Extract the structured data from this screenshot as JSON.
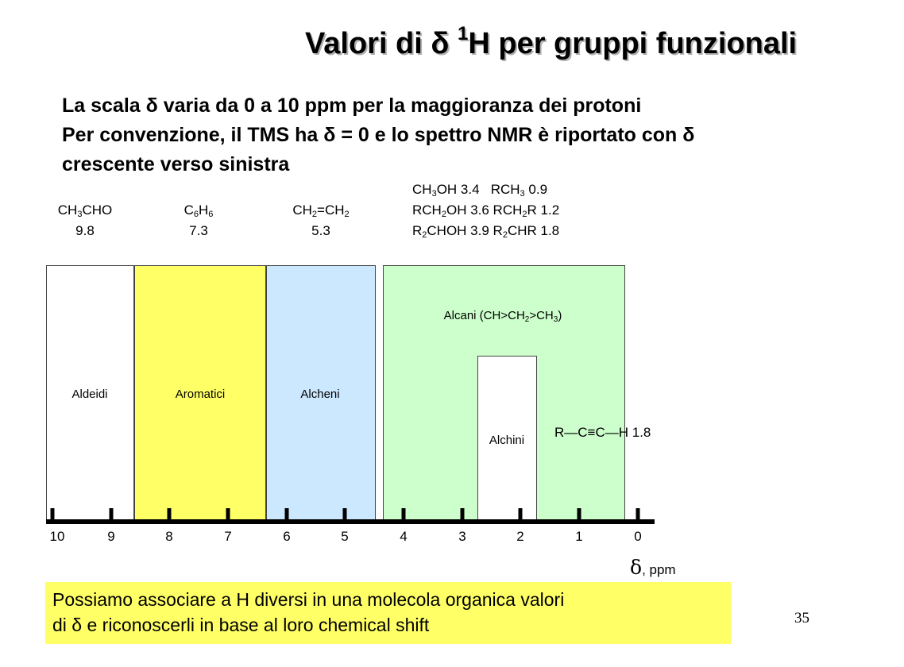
{
  "title": {
    "text": "Valori di δ",
    "sup": "1",
    "rest": "H per gruppi funzionali"
  },
  "intro_lines": [
    "La scala δ varia da 0 a 10 ppm per la maggioranza dei protoni",
    "Per convenzione, il TMS ha δ = 0 e lo spettro NMR è riportato con δ",
    "crescente verso sinistra"
  ],
  "examples": {
    "aldehyde": {
      "formula": [
        "CH",
        "3",
        "CHO"
      ],
      "value": "9.8"
    },
    "aromatic": {
      "formula": [
        "C",
        "6",
        "H",
        "6"
      ],
      "value": "7.3"
    },
    "alkene": {
      "formula": [
        "CH",
        "2",
        "=CH",
        "2"
      ],
      "value": "5.3"
    },
    "alkane_lines": [
      [
        "CH",
        "3",
        "OH 3.4   RCH",
        "3",
        " 0.9"
      ],
      [
        "RCH",
        "2",
        "OH 3.6 RCH",
        "2",
        "R 1.2"
      ],
      [
        "R",
        "2",
        "CHOH 3.9 R",
        "2",
        "CHR 1.8"
      ]
    ]
  },
  "bands": {
    "aldeidi": "Aldeidi",
    "aromatici": "Aromatici",
    "alcheni": "Alcheni",
    "alcani": [
      "Alcani (CH>CH",
      "2",
      ">CH",
      "3",
      ")"
    ],
    "alchini": "Alchini"
  },
  "colors": {
    "aldeidi": "#ffffff",
    "aromatici": "#ffff66",
    "alcheni": "#cce8ff",
    "alcani": "#ccffcc",
    "alchini": "#ffffff",
    "note": "#ffff66"
  },
  "axis": {
    "ticks": [
      "10",
      "9",
      "8",
      "7",
      "6",
      "5",
      "4",
      "3",
      "2",
      "1",
      "0"
    ],
    "unit_symbol": "δ",
    "unit_text": ", ppm"
  },
  "alkyne_example": {
    "text": "R—C≡C—H 1.8"
  },
  "note": [
    "Possiamo associare a H diversi in una molecola organica valori",
    "di δ e riconoscerli in base al loro chemical shift"
  ],
  "page_number": "35"
}
